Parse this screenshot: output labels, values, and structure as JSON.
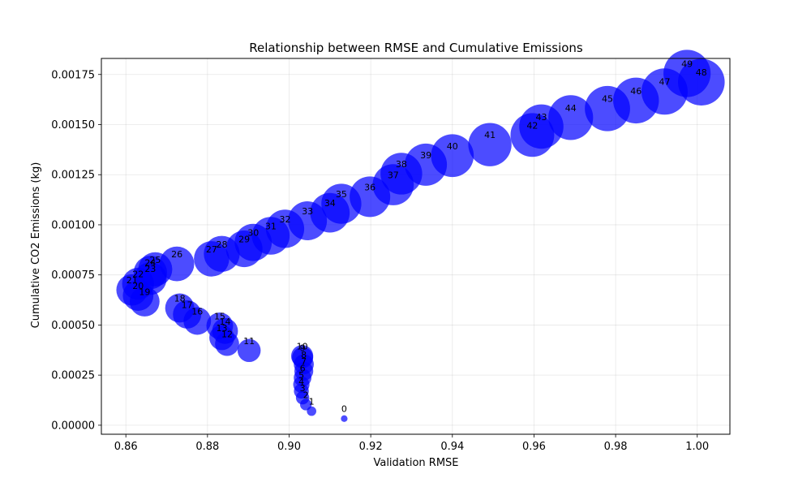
{
  "chart_data": {
    "type": "scatter",
    "title": "Relationship between RMSE and Cumulative Emissions",
    "xlabel": "Validation RMSE",
    "ylabel": "Cumulative CO2 Emissions (kg)",
    "xlim": [
      0.854,
      1.008
    ],
    "ylim": [
      -4.5e-05,
      0.00183
    ],
    "xticks": [
      0.86,
      0.88,
      0.9,
      0.92,
      0.94,
      0.96,
      0.98,
      1.0
    ],
    "xtick_labels": [
      "0.86",
      "0.88",
      "0.90",
      "0.92",
      "0.94",
      "0.96",
      "0.98",
      "1.00"
    ],
    "yticks": [
      0,
      0.00025,
      0.0005,
      0.00075,
      0.001,
      0.00125,
      0.0015,
      0.00175
    ],
    "ytick_labels": [
      "0.00000",
      "0.00025",
      "0.00050",
      "0.00075",
      "0.00100",
      "0.00125",
      "0.00150",
      "0.00175"
    ],
    "grid": true,
    "marker_color": "#0000ff",
    "marker_alpha": 0.7,
    "size_encoding": "epoch",
    "points": [
      {
        "label": "0",
        "x": 0.9135,
        "y": 3.3e-05
      },
      {
        "label": "1",
        "x": 0.9055,
        "y": 7e-05
      },
      {
        "label": "2",
        "x": 0.9041,
        "y": 0.000103
      },
      {
        "label": "3",
        "x": 0.9033,
        "y": 0.000137
      },
      {
        "label": "4",
        "x": 0.903,
        "y": 0.00017
      },
      {
        "label": "5",
        "x": 0.903,
        "y": 0.000203
      },
      {
        "label": "6",
        "x": 0.9033,
        "y": 0.000237
      },
      {
        "label": "7",
        "x": 0.9036,
        "y": 0.00027
      },
      {
        "label": "8",
        "x": 0.9036,
        "y": 0.000304
      },
      {
        "label": "9",
        "x": 0.9033,
        "y": 0.000337
      },
      {
        "label": "10",
        "x": 0.9032,
        "y": 0.000345
      },
      {
        "label": "11",
        "x": 0.8902,
        "y": 0.000373
      },
      {
        "label": "12",
        "x": 0.8848,
        "y": 0.000406
      },
      {
        "label": "13",
        "x": 0.8835,
        "y": 0.000437
      },
      {
        "label": "14",
        "x": 0.8843,
        "y": 0.00047
      },
      {
        "label": "15",
        "x": 0.883,
        "y": 0.000496
      },
      {
        "label": "16",
        "x": 0.8775,
        "y": 0.00052
      },
      {
        "label": "17",
        "x": 0.875,
        "y": 0.000553
      },
      {
        "label": "18",
        "x": 0.8732,
        "y": 0.000585
      },
      {
        "label": "19",
        "x": 0.8646,
        "y": 0.000617
      },
      {
        "label": "20",
        "x": 0.863,
        "y": 0.000647
      },
      {
        "label": "21",
        "x": 0.8615,
        "y": 0.000675
      },
      {
        "label": "22",
        "x": 0.863,
        "y": 0.000706
      },
      {
        "label": "23",
        "x": 0.866,
        "y": 0.000732
      },
      {
        "label": "24",
        "x": 0.866,
        "y": 0.000762
      },
      {
        "label": "25",
        "x": 0.8672,
        "y": 0.000778
      },
      {
        "label": "26",
        "x": 0.8725,
        "y": 0.000805
      },
      {
        "label": "27",
        "x": 0.881,
        "y": 0.00083
      },
      {
        "label": "28",
        "x": 0.8835,
        "y": 0.000855
      },
      {
        "label": "29",
        "x": 0.889,
        "y": 0.00088
      },
      {
        "label": "30",
        "x": 0.8912,
        "y": 0.000912
      },
      {
        "label": "31",
        "x": 0.8955,
        "y": 0.000945
      },
      {
        "label": "32",
        "x": 0.899,
        "y": 0.00098
      },
      {
        "label": "33",
        "x": 0.9045,
        "y": 0.00102
      },
      {
        "label": "34",
        "x": 0.91,
        "y": 0.00106
      },
      {
        "label": "35",
        "x": 0.9128,
        "y": 0.001105
      },
      {
        "label": "36",
        "x": 0.9198,
        "y": 0.00114
      },
      {
        "label": "37",
        "x": 0.9255,
        "y": 0.0012
      },
      {
        "label": "38",
        "x": 0.9275,
        "y": 0.001255
      },
      {
        "label": "39",
        "x": 0.9335,
        "y": 0.0013
      },
      {
        "label": "40",
        "x": 0.94,
        "y": 0.001345
      },
      {
        "label": "41",
        "x": 0.9492,
        "y": 0.0014
      },
      {
        "label": "42",
        "x": 0.9596,
        "y": 0.001448
      },
      {
        "label": "43",
        "x": 0.9618,
        "y": 0.00149
      },
      {
        "label": "44",
        "x": 0.969,
        "y": 0.001535
      },
      {
        "label": "45",
        "x": 0.978,
        "y": 0.00158
      },
      {
        "label": "46",
        "x": 0.985,
        "y": 0.00162
      },
      {
        "label": "47",
        "x": 0.992,
        "y": 0.001665
      },
      {
        "label": "48",
        "x": 1.001,
        "y": 0.001712
      },
      {
        "label": "49",
        "x": 0.9975,
        "y": 0.001755
      }
    ]
  }
}
